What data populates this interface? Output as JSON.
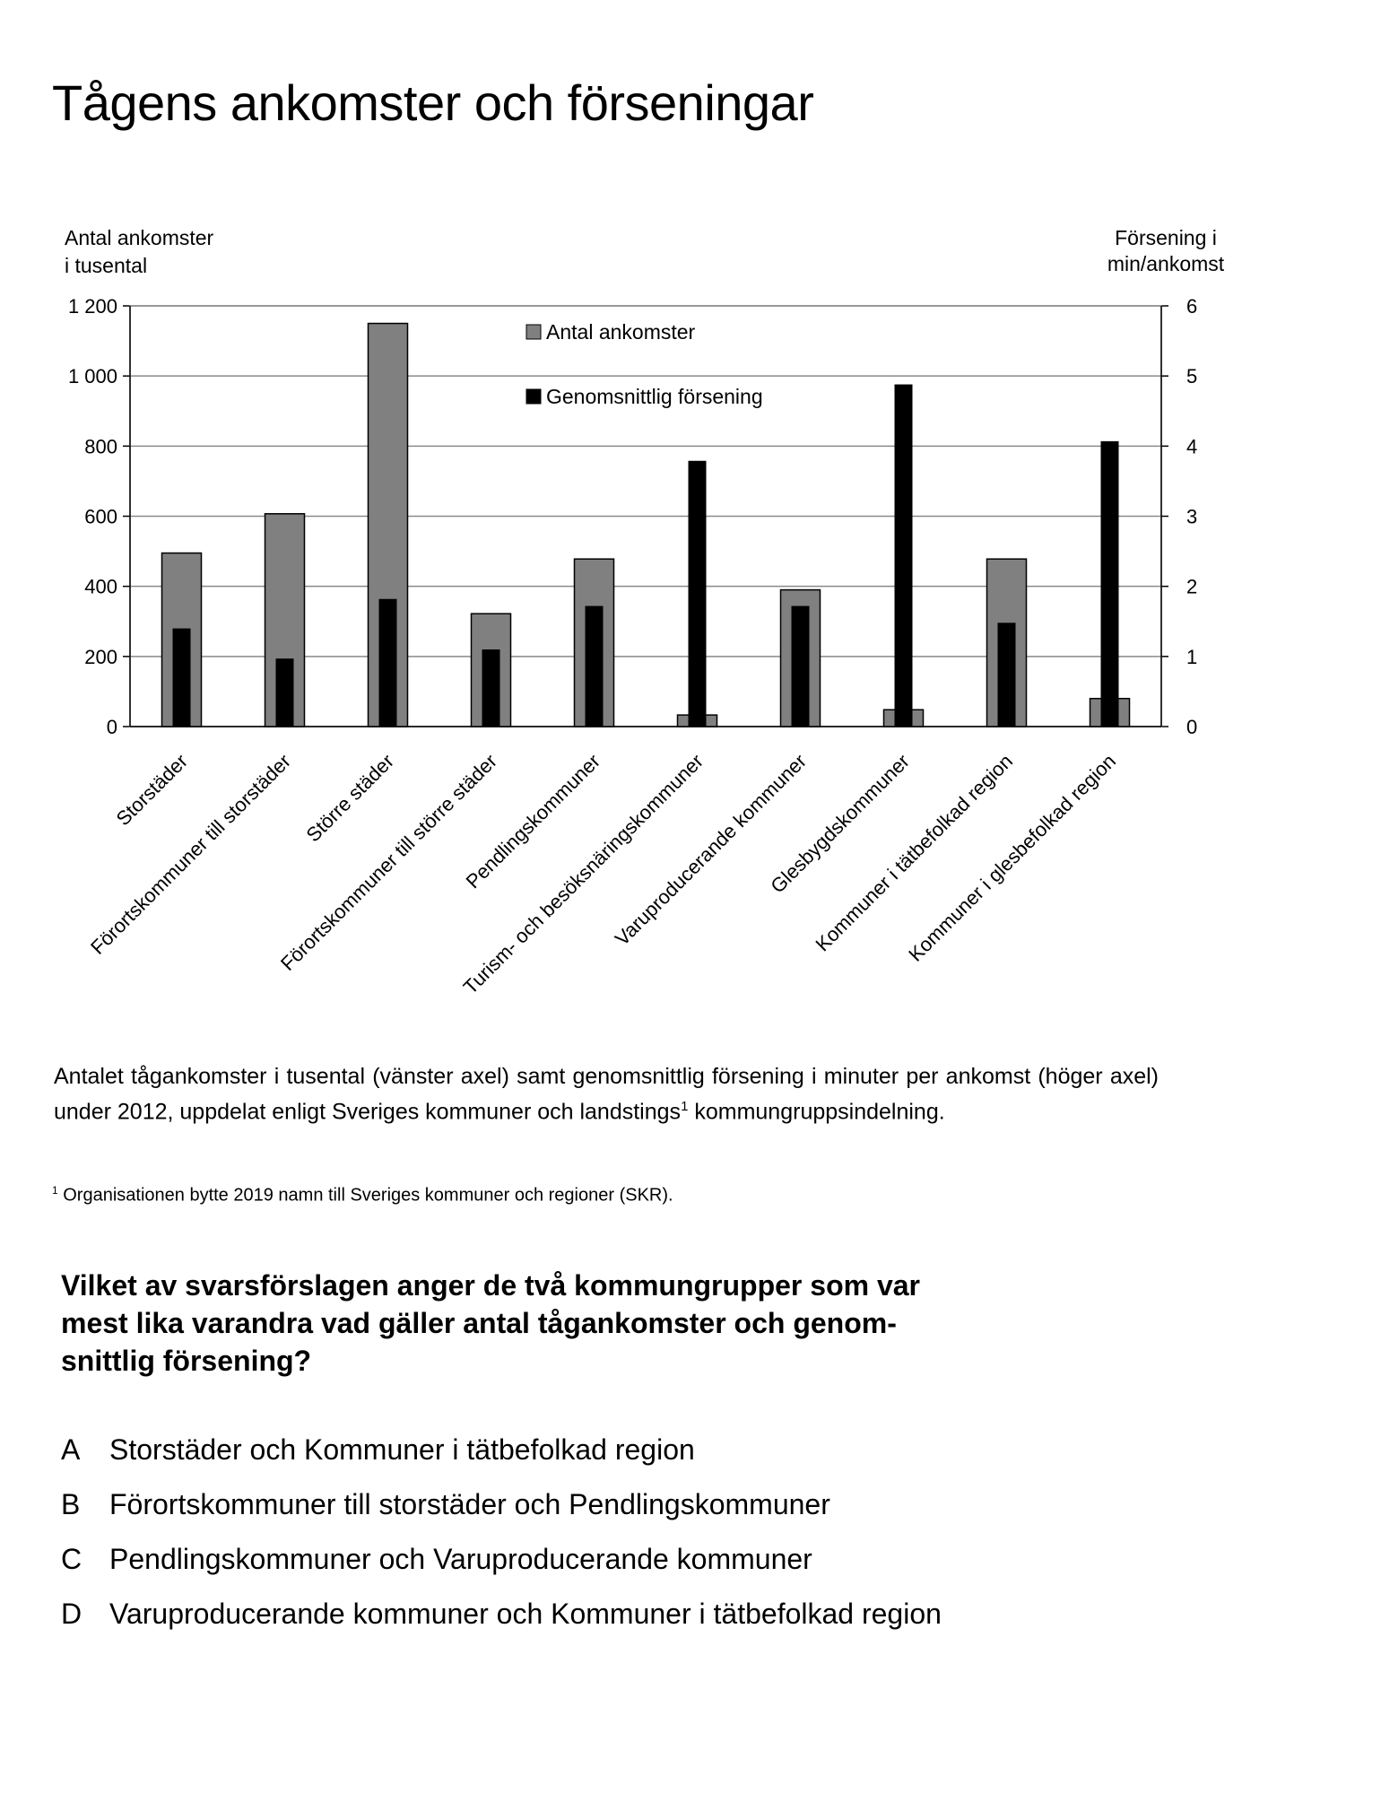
{
  "title": "Tågens ankomster och förseningar",
  "chart_data": {
    "type": "bar",
    "title": "",
    "categories": [
      "Storstäder",
      "Förortskommuner till storstäder",
      "Större städer",
      "Förortskommuner till större städer",
      "Pendlingskommuner",
      "Turism- och besöksnäringskommuner",
      "Varuproducerande kommuner",
      "Glesbygdskommuner",
      "Kommuner i tätbefolkad region",
      "Kommuner i glesbefolkad region"
    ],
    "series": [
      {
        "name": "Antal ankomster",
        "axis": "left",
        "color": "#808080",
        "values": [
          495,
          607,
          1150,
          322,
          478,
          33,
          390,
          48,
          478,
          80
        ]
      },
      {
        "name": "Genomsnittlig försening",
        "axis": "right",
        "color": "#000000",
        "values": [
          1.4,
          0.97,
          1.82,
          1.1,
          1.72,
          3.79,
          1.72,
          4.88,
          1.48,
          4.07
        ]
      }
    ],
    "ylabel": [
      "Antal ankomster",
      "i tusental"
    ],
    "y2label": [
      "Försening i",
      "min/ankomst"
    ],
    "ylim": [
      0,
      1200
    ],
    "y2lim": [
      0,
      6
    ],
    "yticks": [
      "0",
      "200",
      "400",
      "600",
      "800",
      "1 000",
      "1 200"
    ],
    "y2ticks": [
      "0",
      "1",
      "2",
      "3",
      "4",
      "5",
      "6"
    ],
    "grid": true,
    "legend": "top-center"
  },
  "caption": {
    "main": "Antalet tågankomster i tusental (vänster axel) samt genomsnittlig försening i minuter per ankomst (höger axel) under 2012, uppdelat enligt Sveriges kommuner och landstings",
    "sup": "1",
    "end": " kommungruppsindelning."
  },
  "footnote": {
    "sup": "1",
    "text": " Organisationen bytte 2019 namn till Sveriges kommuner och regioner (SKR)."
  },
  "question": "Vilket av svarsförslagen anger de två kommungrupper som var mest lika varandra vad gäller antal tågankomster och genom-snittlig försening?",
  "options": [
    {
      "letter": "A",
      "text": "Storstäder och Kommuner i tätbefolkad region"
    },
    {
      "letter": "B",
      "text": "Förortskommuner till storstäder och Pendlingskommuner"
    },
    {
      "letter": "C",
      "text": "Pendlingskommuner och Varuproducerande kommuner"
    },
    {
      "letter": "D",
      "text": "Varuproducerande kommuner och Kommuner i tätbefolkad region"
    }
  ]
}
